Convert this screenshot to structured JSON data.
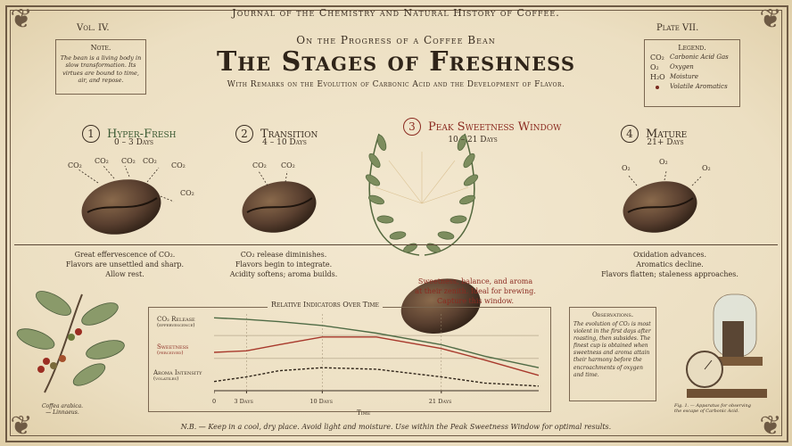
{
  "header": {
    "journal": "Journal of the Chemistry and Natural History of Coffee.",
    "volume": "Vol. IV.",
    "plate": "Plate VII.",
    "supertitle": "On the Progress of a Coffee Bean",
    "title": "The Stages of Freshness",
    "subtitle": "With Remarks on the Evolution of Carbonic Acid and the Development of Flavor."
  },
  "note": {
    "title": "Note.",
    "body": "The bean is a living body in slow transformation. Its virtues are bound to time, air, and repose."
  },
  "legend": {
    "title": "Legend.",
    "items": [
      {
        "symbol": "CO₂",
        "label": "Carbonic Acid Gas"
      },
      {
        "symbol": "O₂",
        "label": "Oxygen"
      },
      {
        "symbol": "H₂O",
        "label": "Moisture"
      },
      {
        "symbol": "•",
        "label": "Volatile Aromatics"
      }
    ]
  },
  "stages": [
    {
      "number": "1",
      "name": "Hyper-Fresh",
      "days": "0 – 3 Days",
      "desc1": "Great effervescence of CO₂.",
      "desc2": "Flavors are unsettled and sharp.",
      "desc3": "Allow rest."
    },
    {
      "number": "2",
      "name": "Transition",
      "days": "4 – 10 Days",
      "desc1": "CO₂ release diminishes.",
      "desc2": "Flavors begin to integrate.",
      "desc3": "Acidity softens; aroma builds."
    },
    {
      "number": "3",
      "name": "Peak Sweetness Window",
      "days": "10 – 21 Days",
      "desc1": "Sweetness, balance, and aroma",
      "desc2": "at their zenith. Ideal for brewing.",
      "desc3": "Capture this window."
    },
    {
      "number": "4",
      "name": "Mature",
      "days": "21+ Days",
      "desc1": "Oxidation advances.",
      "desc2": "Aromatics decline.",
      "desc3": "Flavors flatten; staleness approaches."
    }
  ],
  "gas_labels": {
    "co2": "CO₂",
    "o2": "O₂"
  },
  "chart_data": {
    "type": "line",
    "title": "Relative Indicators Over Time",
    "xlabel": "Time",
    "x_ticks": [
      "0",
      "3 Days",
      "10 Days",
      "21 Days"
    ],
    "x_tick_positions": [
      0,
      3,
      10,
      21
    ],
    "xlim": [
      0,
      30
    ],
    "series": [
      {
        "name": "CO₂ Release",
        "sublabel": "(effervescence)",
        "color": "#4f6b45",
        "x": [
          0,
          3,
          6,
          10,
          15,
          21,
          25,
          30
        ],
        "values": [
          0.95,
          0.93,
          0.9,
          0.85,
          0.75,
          0.6,
          0.45,
          0.3
        ]
      },
      {
        "name": "Sweetness",
        "sublabel": "(perceived)",
        "color": "#a8392c",
        "x": [
          0,
          3,
          6,
          10,
          15,
          21,
          25,
          30
        ],
        "values": [
          0.5,
          0.52,
          0.6,
          0.7,
          0.7,
          0.55,
          0.4,
          0.2
        ]
      },
      {
        "name": "Aroma Intensity",
        "sublabel": "(volatiles)",
        "color": "#2f2419",
        "x": [
          0,
          3,
          6,
          10,
          15,
          21,
          25,
          30
        ],
        "values": [
          0.12,
          0.18,
          0.26,
          0.3,
          0.28,
          0.18,
          0.1,
          0.06
        ]
      }
    ]
  },
  "observations": {
    "title": "Observations.",
    "body": "The evolution of CO₂ is most violent in the first days after roasting, then subsides. The finest cup is obtained when sweetness and aroma attain their harmony before the encroachments of oxygen and time."
  },
  "botanical_caption": {
    "line1": "Coffea arabica.",
    "line2": "— Linnaeus."
  },
  "apparatus_caption": {
    "line1": "Fig. 1. — Apparatus for observing",
    "line2": "the escape of Carbonic Acid."
  },
  "footnote": "N.B. — Keep in a cool, dry place. Avoid light and moisture. Use within the Peak Sweetness Window for optimal results.",
  "colors": {
    "ink": "#3b2e22",
    "accent_red": "#8b2a20",
    "accent_green": "#3c5a33",
    "paper": "#efe3c9"
  }
}
